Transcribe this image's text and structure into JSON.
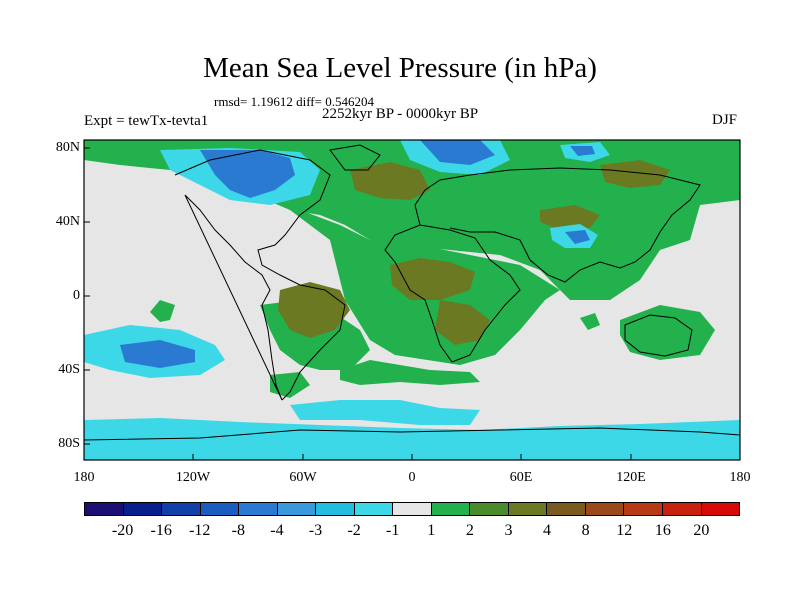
{
  "title": "Mean Sea Level Pressure (in hPa)",
  "stats": "rmsd= 1.19612 diff= 0.546204",
  "experiment": "Expt = tewTx-tevta1",
  "period": "2252kyr BP - 0000kyr BP",
  "season": "DJF",
  "map": {
    "background_color": "#e6e6e6",
    "lat_ticks": [
      "80N",
      "40N",
      "0",
      "40S",
      "80S"
    ],
    "lon_ticks": [
      "180",
      "120W",
      "60W",
      "0",
      "60E",
      "120E",
      "180"
    ]
  },
  "colorbar": {
    "colors": [
      "#1c0f73",
      "#08208c",
      "#1040a8",
      "#1a5cc0",
      "#2a7ad2",
      "#3a98dc",
      "#24bde0",
      "#3cd8e8",
      "#e6e6e6",
      "#22b14c",
      "#4a8c2a",
      "#6b7a22",
      "#7a5a1e",
      "#9a4a1a",
      "#b83a14",
      "#c8200c",
      "#d60808"
    ],
    "labels": [
      "-20",
      "-16",
      "-12",
      "-8",
      "-4",
      "-3",
      "-2",
      "-1",
      "1",
      "2",
      "3",
      "4",
      "8",
      "12",
      "16",
      "20"
    ]
  }
}
